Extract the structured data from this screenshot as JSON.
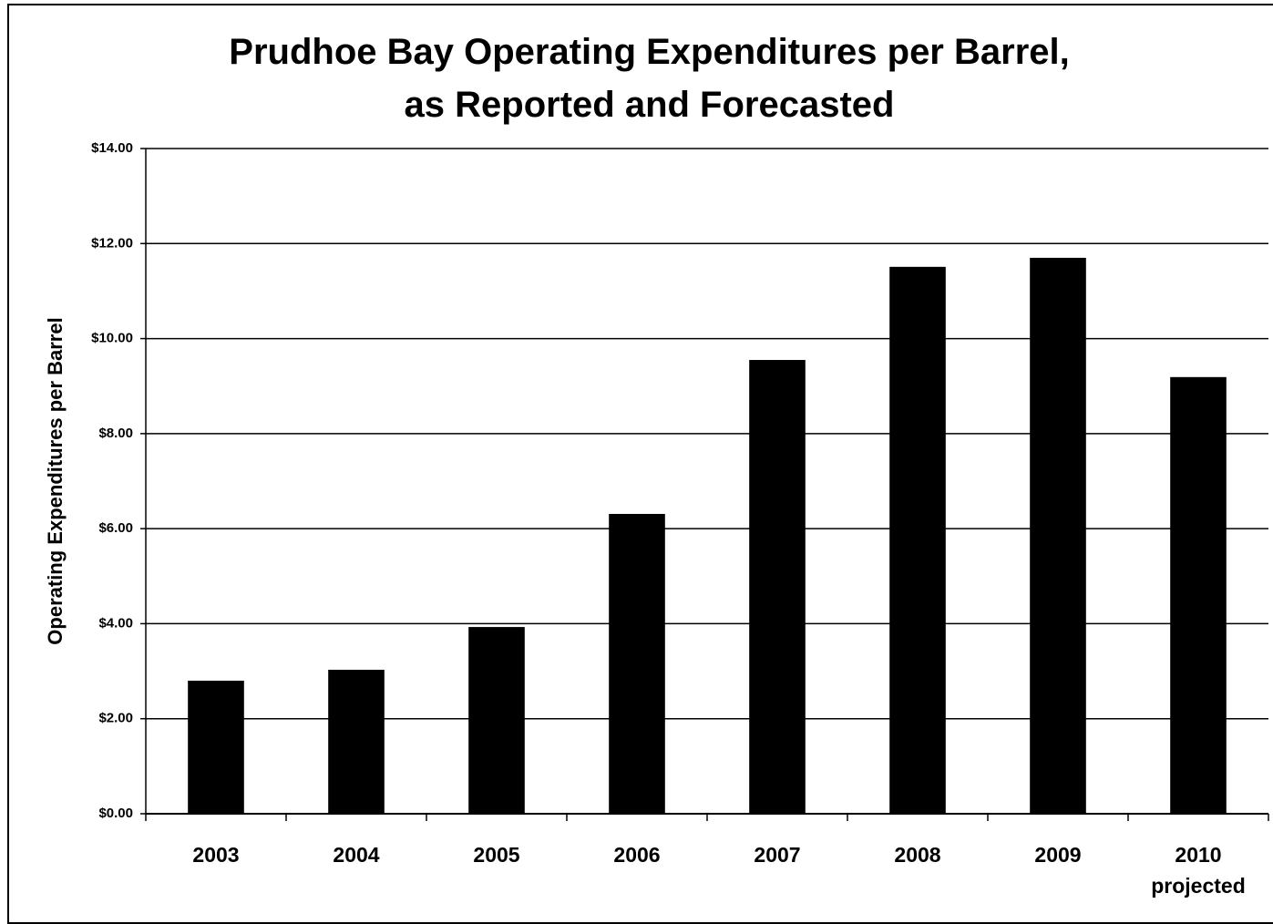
{
  "chart_data": {
    "type": "bar",
    "title": "Prudhoe Bay Operating Expenditures per Barrel,\nas Reported and Forecasted",
    "y_label": "Operating Expenditures per Barrel",
    "categories": [
      "2003",
      "2004",
      "2005",
      "2006",
      "2007",
      "2008",
      "2009",
      "2010\nprojected"
    ],
    "values": [
      2.8,
      3.03,
      3.93,
      6.31,
      9.55,
      11.51,
      11.7,
      9.19
    ],
    "color": "#000000",
    "ylim": [
      0,
      14
    ],
    "yticks": [
      {
        "value": 0,
        "label": "$0.00"
      },
      {
        "value": 2,
        "label": "$2.00"
      },
      {
        "value": 4,
        "label": "$4.00"
      },
      {
        "value": 6,
        "label": "$6.00"
      },
      {
        "value": 8,
        "label": "$8.00"
      },
      {
        "value": 10,
        "label": "$10.00"
      },
      {
        "value": 12,
        "label": "$12.00"
      },
      {
        "value": 14,
        "label": "$14.00"
      }
    ],
    "grid": true
  }
}
